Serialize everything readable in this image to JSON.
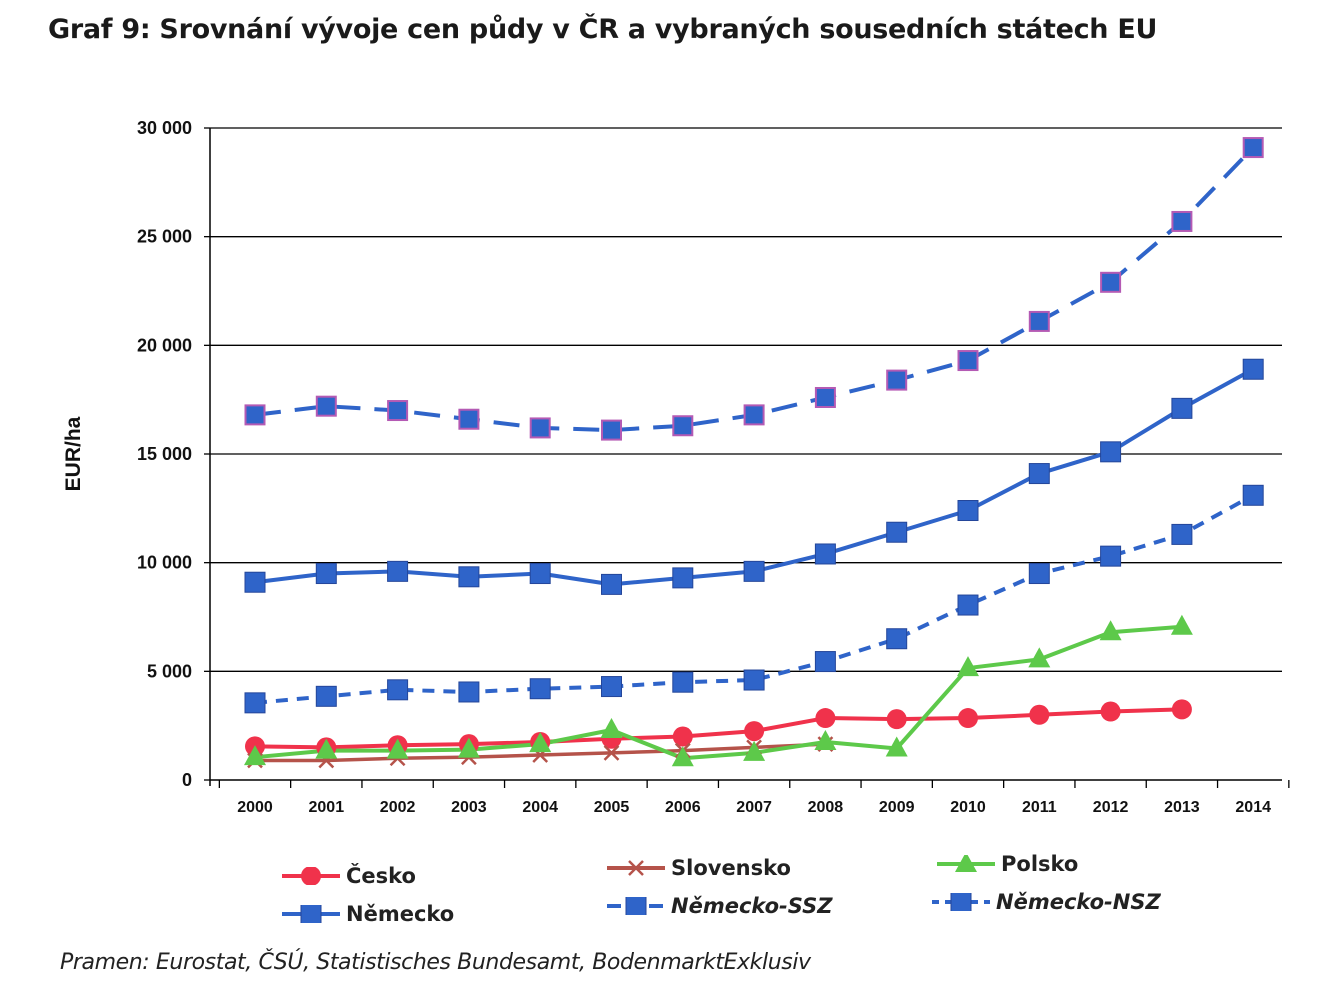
{
  "title": "Graf 9: Srovnání vývoje cen půdy v ČR a vybraných sousedních státech EU",
  "source": "Pramen: Eurostat, ČSÚ, Statistisches Bundesamt, BodenmarktExklusiv",
  "colors": {
    "cesko": "#f0324b",
    "slovensko": "#b5534a",
    "polsko": "#5dc94a",
    "nemecko": "#2f64c9",
    "marker_outline_ssz": "#b45ab4"
  },
  "chart_data": {
    "type": "line",
    "title": "Graf 9: Srovnání vývoje cen půdy v ČR a vybraných sousedních státech EU",
    "xlabel": "",
    "ylabel": "EUR/ha",
    "ylim": [
      0,
      30000
    ],
    "grid": true,
    "legend_position": "bottom",
    "x": [
      "2000",
      "2001",
      "2002",
      "2003",
      "2004",
      "2005",
      "2006",
      "2007",
      "2008",
      "2009",
      "2010",
      "2011",
      "2012",
      "2013",
      "2014"
    ],
    "y_ticks": [
      "0",
      "5 000",
      "10 000",
      "15 000",
      "20 000",
      "25 000",
      "30 000"
    ],
    "y_tick_values": [
      0,
      5000,
      10000,
      15000,
      20000,
      25000,
      30000
    ],
    "series": [
      {
        "name": "Česko",
        "color": "#f0324b",
        "marker": "circle",
        "dash": "solid",
        "values": [
          1550,
          1500,
          1600,
          1650,
          1750,
          1900,
          2000,
          2250,
          2850,
          2800,
          2850,
          3000,
          3150,
          3250,
          null
        ]
      },
      {
        "name": "Slovensko",
        "color": "#b5534a",
        "marker": "x",
        "dash": "solid",
        "values": [
          900,
          900,
          1000,
          1050,
          1150,
          1250,
          1350,
          1500,
          1650,
          null,
          null,
          null,
          null,
          null,
          null
        ]
      },
      {
        "name": "Polsko",
        "color": "#5dc94a",
        "marker": "triangle",
        "dash": "solid",
        "values": [
          1050,
          1350,
          1350,
          1400,
          1650,
          2300,
          1000,
          1250,
          1750,
          1450,
          5150,
          5550,
          6800,
          7050,
          null
        ]
      },
      {
        "name": "Německo",
        "color": "#2f64c9",
        "marker": "square",
        "dash": "solid",
        "values": [
          9100,
          9500,
          9600,
          9350,
          9500,
          9000,
          9300,
          9600,
          10400,
          11400,
          12400,
          14100,
          15100,
          17100,
          18900
        ]
      },
      {
        "name": "Německo-SSZ",
        "color": "#2f64c9",
        "marker": "square-outline",
        "dash": "long",
        "values": [
          16800,
          17200,
          17000,
          16600,
          16200,
          16100,
          16300,
          16800,
          17600,
          18400,
          19300,
          21100,
          22900,
          25700,
          29100
        ]
      },
      {
        "name": "Německo-NSZ",
        "color": "#2f64c9",
        "marker": "square",
        "dash": "short",
        "values": [
          3550,
          3850,
          4150,
          4050,
          4200,
          4300,
          4500,
          4600,
          5450,
          6500,
          8050,
          9500,
          10300,
          11300,
          13100
        ]
      }
    ]
  }
}
